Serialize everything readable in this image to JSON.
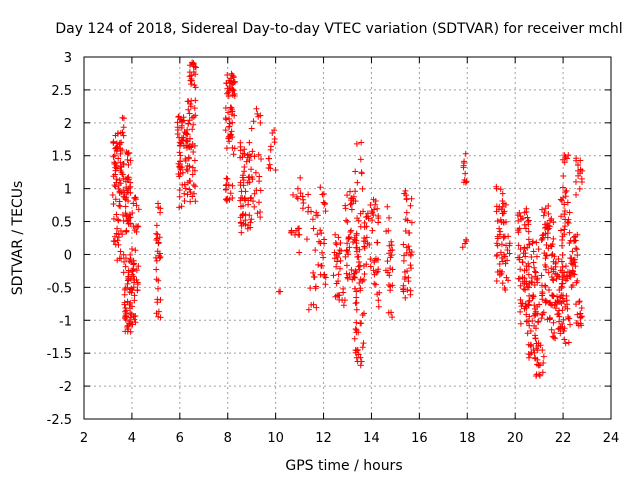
{
  "chart_data": {
    "type": "scatter",
    "title": "Day 124 of 2018, Sidereal Day-to-day VTEC variation (SDTVAR) for receiver mchl",
    "xlabel": "GPS time / hours",
    "ylabel": "SDTVAR / TECUs",
    "xlim": [
      2,
      24
    ],
    "ylim": [
      -2.5,
      3
    ],
    "xticks": [
      "2",
      "4",
      "6",
      "8",
      "10",
      "12",
      "14",
      "16",
      "18",
      "20",
      "22",
      "24"
    ],
    "yticks": [
      "-2.5",
      "-2",
      "-1.5",
      "-1",
      "-0.5",
      "0",
      "0.5",
      "1",
      "1.5",
      "2",
      "2.5",
      "3"
    ],
    "grid": true,
    "marker": "plus",
    "series": [
      {
        "name": "SDTVAR",
        "color": "#ff0000",
        "clusters": [
          {
            "x": [
              3.2,
              3.55
            ],
            "y": [
              -0.1,
              1.85
            ],
            "n": 70
          },
          {
            "x": [
              3.55,
              3.95
            ],
            "y": [
              0.3,
              1.6
            ],
            "n": 55
          },
          {
            "x": [
              3.65,
              4.1
            ],
            "y": [
              -0.8,
              0.0
            ],
            "n": 40
          },
          {
            "x": [
              3.7,
              4.15
            ],
            "y": [
              -1.2,
              -0.8
            ],
            "n": 30
          },
          {
            "x": [
              4.0,
              4.3
            ],
            "y": [
              -0.7,
              0.9
            ],
            "n": 30
          },
          {
            "x": [
              3.6,
              3.7
            ],
            "y": [
              1.8,
              2.1
            ],
            "n": 5
          },
          {
            "x": [
              5.0,
              5.2
            ],
            "y": [
              -1.1,
              0.9
            ],
            "n": 30
          },
          {
            "x": [
              5.9,
              6.3
            ],
            "y": [
              0.7,
              2.1
            ],
            "n": 60
          },
          {
            "x": [
              6.3,
              6.65
            ],
            "y": [
              0.8,
              2.35
            ],
            "n": 50
          },
          {
            "x": [
              6.4,
              6.7
            ],
            "y": [
              2.5,
              2.95
            ],
            "n": 20
          },
          {
            "x": [
              7.9,
              8.3
            ],
            "y": [
              1.5,
              2.75
            ],
            "n": 60
          },
          {
            "x": [
              7.9,
              8.2
            ],
            "y": [
              0.8,
              1.2
            ],
            "n": 15
          },
          {
            "x": [
              8.5,
              9.0
            ],
            "y": [
              0.3,
              1.7
            ],
            "n": 60
          },
          {
            "x": [
              9.0,
              9.4
            ],
            "y": [
              0.5,
              2.4
            ],
            "n": 25
          },
          {
            "x": [
              9.7,
              10.0
            ],
            "y": [
              1.2,
              1.95
            ],
            "n": 12
          },
          {
            "x": [
              10.5,
              11.0
            ],
            "y": [
              0.0,
              0.4
            ],
            "n": 10
          },
          {
            "x": [
              10.7,
              11.2
            ],
            "y": [
              0.7,
              1.2
            ],
            "n": 10
          },
          {
            "x": [
              11.3,
              11.7
            ],
            "y": [
              -0.85,
              0.95
            ],
            "n": 20
          },
          {
            "x": [
              11.7,
              12.1
            ],
            "y": [
              -0.5,
              1.1
            ],
            "n": 25
          },
          {
            "x": [
              12.4,
              12.9
            ],
            "y": [
              -0.8,
              0.3
            ],
            "n": 30
          },
          {
            "x": [
              12.9,
              13.4
            ],
            "y": [
              -0.4,
              1.05
            ],
            "n": 50
          },
          {
            "x": [
              13.3,
              13.7
            ],
            "y": [
              -1.75,
              1.75
            ],
            "n": 60
          },
          {
            "x": [
              13.7,
              14.3
            ],
            "y": [
              -0.4,
              0.85
            ],
            "n": 40
          },
          {
            "x": [
              14.6,
              14.9
            ],
            "y": [
              -1.0,
              0.8
            ],
            "n": 25
          },
          {
            "x": [
              15.3,
              15.7
            ],
            "y": [
              -0.75,
              1.0
            ],
            "n": 40
          },
          {
            "x": [
              17.8,
              18.0
            ],
            "y": [
              1.0,
              1.65
            ],
            "n": 10
          },
          {
            "x": [
              17.8,
              18.0
            ],
            "y": [
              0.1,
              0.25
            ],
            "n": 4
          },
          {
            "x": [
              19.2,
              19.8
            ],
            "y": [
              -0.6,
              1.05
            ],
            "n": 60
          },
          {
            "x": [
              20.1,
              20.6
            ],
            "y": [
              -1.1,
              0.7
            ],
            "n": 70
          },
          {
            "x": [
              20.5,
              21.0
            ],
            "y": [
              -1.6,
              0.2
            ],
            "n": 60
          },
          {
            "x": [
              20.8,
              21.2
            ],
            "y": [
              -2.0,
              -1.2
            ],
            "n": 20
          },
          {
            "x": [
              21.1,
              21.6
            ],
            "y": [
              -1.0,
              0.8
            ],
            "n": 70
          },
          {
            "x": [
              21.5,
              22.0
            ],
            "y": [
              -1.3,
              0.0
            ],
            "n": 50
          },
          {
            "x": [
              21.9,
              22.3
            ],
            "y": [
              -1.5,
              1.6
            ],
            "n": 70
          },
          {
            "x": [
              22.3,
              22.6
            ],
            "y": [
              -0.5,
              0.3
            ],
            "n": 30
          },
          {
            "x": [
              22.5,
              22.8
            ],
            "y": [
              -1.1,
              -0.7
            ],
            "n": 15
          },
          {
            "x": [
              22.5,
              22.8
            ],
            "y": [
              0.9,
              1.5
            ],
            "n": 15
          },
          {
            "x": [
              14.0,
              14.4
            ],
            "y": [
              -0.8,
              -0.2
            ],
            "n": 8
          },
          {
            "x": [
              10.1,
              10.3
            ],
            "y": [
              -0.65,
              -0.55
            ],
            "n": 2
          }
        ]
      }
    ]
  }
}
